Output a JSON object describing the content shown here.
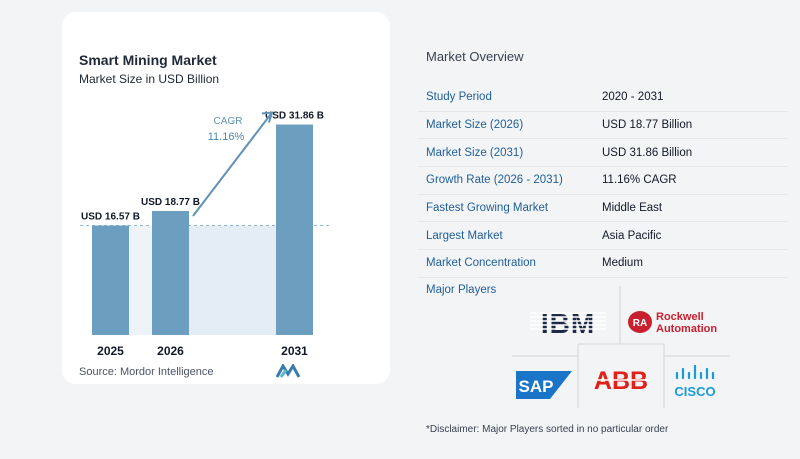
{
  "chart": {
    "title": "Smart Mining Market",
    "subtitle": "Market Size in USD Billion",
    "source": "Source:  Mordor Intelligence",
    "cagr_label": "CAGR",
    "cagr_value": "11.16%"
  },
  "chart_data": {
    "type": "bar",
    "categories": [
      "2025",
      "2026",
      "2031"
    ],
    "values": [
      16.57,
      18.77,
      31.86
    ],
    "value_labels": [
      "USD 16.57 B",
      "USD 18.77 B",
      "USD 31.86 B"
    ],
    "title": "Smart Mining Market",
    "subtitle": "Market Size in USD Billion",
    "xlabel": "",
    "ylabel": "",
    "ylim": [
      0,
      33
    ],
    "annotation": {
      "text": "CAGR 11.16%",
      "from": "2026",
      "to": "2031"
    },
    "colors": {
      "bar": "#6c9ec0",
      "bar_light": "#a9c9dd",
      "arrow": "#5f92b7"
    },
    "grid": false,
    "legend": "none"
  },
  "overview": {
    "title": "Market Overview",
    "rows": [
      {
        "label": "Study Period",
        "value": "2020 - 2031"
      },
      {
        "label": "Market Size (2026)",
        "value": "USD 18.77 Billion"
      },
      {
        "label": "Market Size (2031)",
        "value": "USD 31.86 Billion"
      },
      {
        "label": "Growth Rate (2026 - 2031)",
        "value": "11.16% CAGR"
      },
      {
        "label": "Fastest Growing Market",
        "value": "Middle East"
      },
      {
        "label": "Largest Market",
        "value": "Asia Pacific"
      },
      {
        "label": "Market Concentration",
        "value": "Medium"
      }
    ]
  },
  "players": {
    "title": "Major Players",
    "logos": {
      "ibm": "IBM",
      "rockwell_1": "Rockwell",
      "rockwell_2": "Automation",
      "rockwell_badge": "RA",
      "sap": "SAP",
      "abb": "ABB",
      "cisco": "CISCO"
    },
    "disclaimer": "*Disclaimer: Major Players sorted in no particular order"
  }
}
